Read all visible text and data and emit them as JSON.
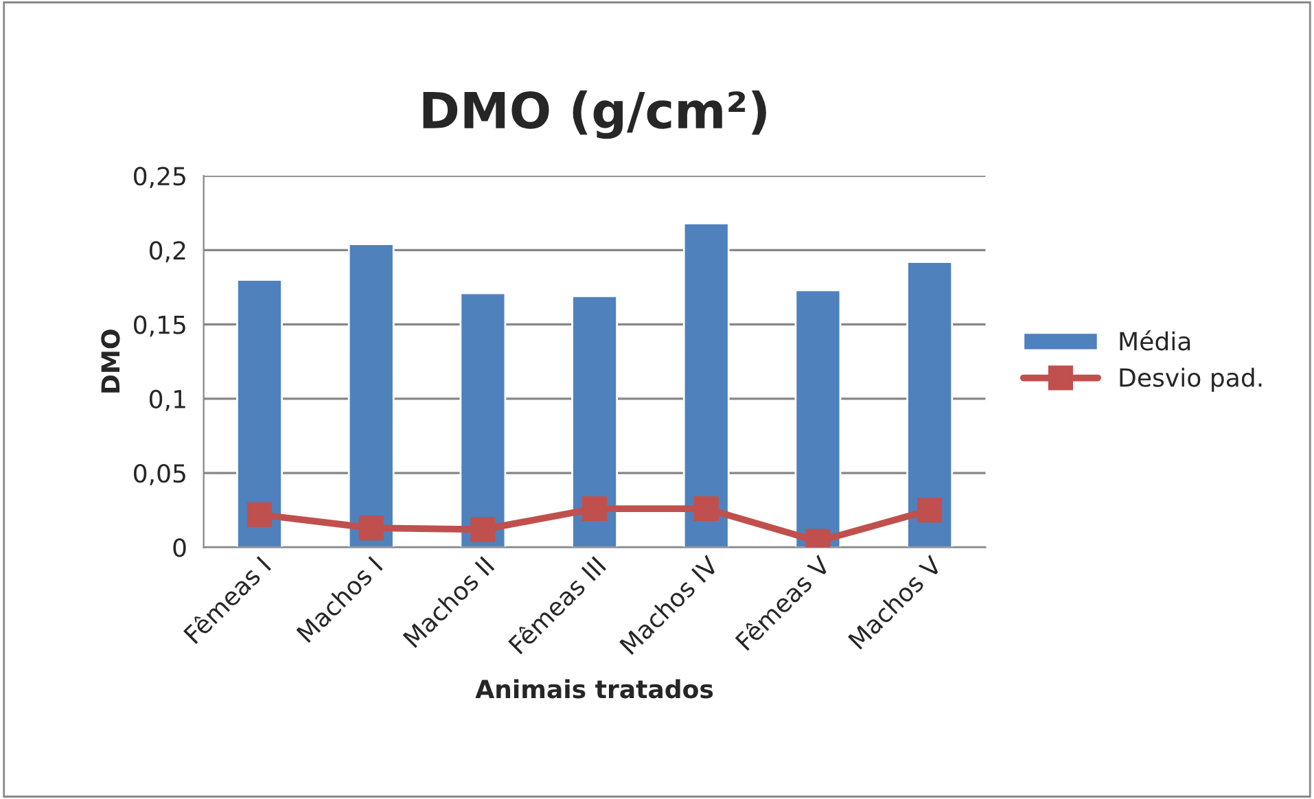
{
  "chart_data": {
    "type": "bar",
    "title": "DMO (g/cm²)",
    "xlabel": "Animais tratados",
    "ylabel": "DMO",
    "categories": [
      "Fêmeas I",
      "Machos I",
      "Machos II",
      "Fêmeas III",
      "Machos IV",
      "Fêmeas V",
      "Machos V"
    ],
    "series": [
      {
        "name": "Média",
        "color": "#4f81bd",
        "values": [
          0.18,
          0.204,
          0.171,
          0.169,
          0.218,
          0.173,
          0.192
        ]
      },
      {
        "name": "Desvio pad.",
        "type": "line",
        "color": "#c0504d",
        "values": [
          0.022,
          0.013,
          0.012,
          0.026,
          0.026,
          0.004,
          0.025
        ]
      }
    ],
    "ylim": [
      0,
      0.25
    ],
    "yticks": [
      {
        "value": 0,
        "label": "0"
      },
      {
        "value": 0.05,
        "label": "0,05"
      },
      {
        "value": 0.1,
        "label": "0,1"
      },
      {
        "value": 0.15,
        "label": "0,15"
      },
      {
        "value": 0.2,
        "label": "0,2"
      },
      {
        "value": 0.25,
        "label": "0,25"
      }
    ],
    "grid": "y",
    "legend": "right",
    "marker": "square"
  }
}
